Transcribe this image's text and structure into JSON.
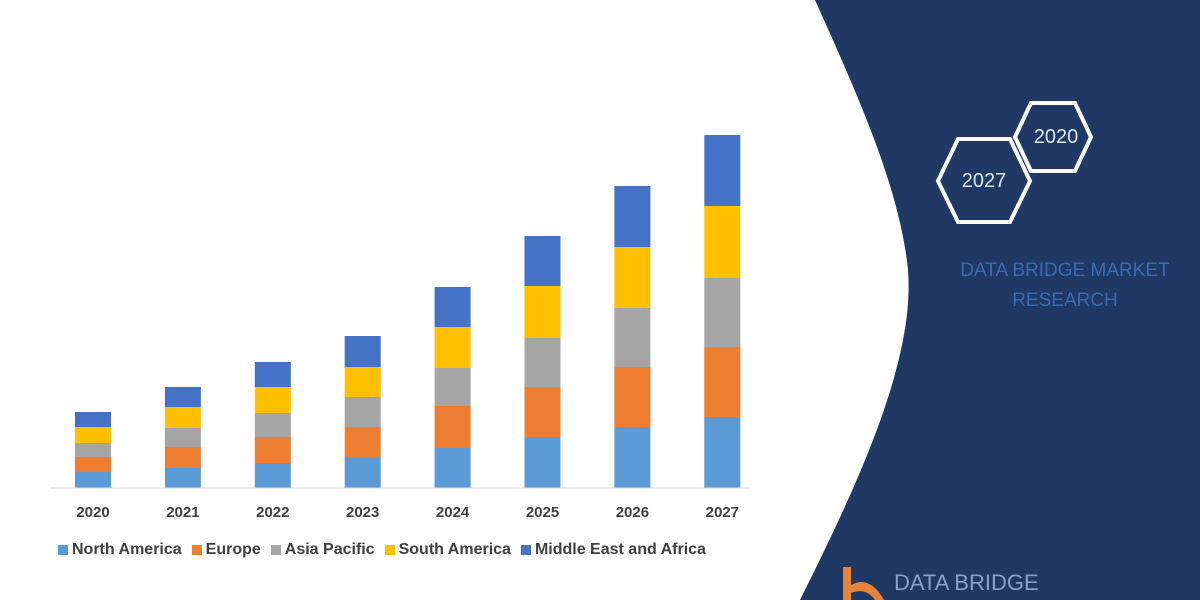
{
  "chart_data": {
    "type": "bar",
    "stacked": true,
    "title": "",
    "xlabel": "",
    "ylabel": "",
    "y_axis_shown": false,
    "grid": false,
    "legend_position": "bottom",
    "categories": [
      "2020",
      "2021",
      "2022",
      "2023",
      "2024",
      "2025",
      "2026",
      "2027"
    ],
    "series": [
      {
        "name": "North America",
        "color": "#5b9bd5",
        "values": [
          16,
          20,
          25,
          30,
          40,
          51,
          61,
          71
        ]
      },
      {
        "name": "Europe",
        "color": "#ed7d31",
        "values": [
          15,
          21,
          26,
          31,
          42,
          50,
          60,
          70
        ]
      },
      {
        "name": "Asia Pacific",
        "color": "#a5a5a5",
        "values": [
          14,
          19,
          24,
          30,
          38,
          49,
          59,
          69
        ]
      },
      {
        "name": "South America",
        "color": "#ffc000",
        "values": [
          16,
          21,
          26,
          30,
          41,
          52,
          61,
          72
        ]
      },
      {
        "name": "Middle East and Africa",
        "color": "#4472c4",
        "values": [
          15,
          20,
          25,
          31,
          40,
          50,
          61,
          71
        ]
      }
    ]
  },
  "side_panel": {
    "color": "#1f3864",
    "hex_years": [
      "2020",
      "2027"
    ],
    "brand": [
      "DATA BRIDGE MARKET",
      "RESEARCH"
    ],
    "logo_text": "DATA BRIDGE"
  }
}
